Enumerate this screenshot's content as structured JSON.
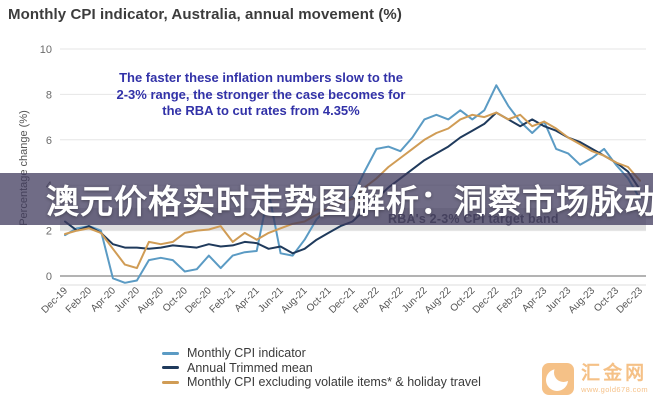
{
  "page": {
    "title": "Monthly CPI indicator, Australia, annual movement (%)"
  },
  "annotation": {
    "text": "The faster these inflation numbers slow to the 2-3% range, the stronger the case becomes for the RBA to cut rates from 4.35%",
    "color": "#3232a8"
  },
  "overlay_banner": {
    "headline": "澳元价格实时走势图解析：洞察市场脉动",
    "background": "rgba(62,56,92,0.74)"
  },
  "target_band": {
    "label": "RBA's 2-3% CPI target band",
    "from": 2,
    "to": 3,
    "fill": "#dcdcdc"
  },
  "watermark": {
    "brand": "汇金网",
    "url": "www.gold678.com",
    "color": "#ed8412"
  },
  "chart_data": {
    "type": "line",
    "title": "Monthly CPI indicator, Australia, annual movement (%)",
    "xlabel": "",
    "ylabel": "Percentage change (%)",
    "ylim": [
      -0.5,
      10
    ],
    "yticks": [
      0,
      2,
      4,
      6,
      8,
      10
    ],
    "grid": "horizontal",
    "legend_position": "bottom-left",
    "frequency": "monthly from Dec-19 to Dec-23 (49 points per series)",
    "x_ticks": [
      "Dec-19",
      "Feb-20",
      "Apr-20",
      "Jun-20",
      "Aug-20",
      "Oct-20",
      "Dec-20",
      "Feb-21",
      "Apr-21",
      "Jun-21",
      "Aug-21",
      "Oct-21",
      "Dec-21",
      "Feb-22",
      "Apr-22",
      "Jun-22",
      "Aug-22",
      "Oct-22",
      "Dec-22",
      "Feb-23",
      "Apr-23",
      "Jun-23",
      "Aug-23",
      "Oct-23",
      "Dec-23"
    ],
    "series": [
      {
        "name": "Monthly CPI indicator",
        "color": "#5b9bc4",
        "values": [
          1.8,
          2.1,
          2.2,
          2.0,
          -0.1,
          -0.3,
          -0.2,
          0.7,
          0.8,
          0.7,
          0.2,
          0.3,
          0.9,
          0.35,
          0.9,
          1.05,
          1.1,
          3.7,
          1.0,
          0.9,
          1.6,
          2.5,
          3.0,
          3.2,
          3.5,
          4.6,
          5.6,
          5.7,
          5.5,
          6.1,
          6.9,
          7.1,
          6.9,
          7.3,
          6.9,
          7.3,
          8.4,
          7.5,
          6.8,
          6.3,
          6.8,
          5.6,
          5.4,
          4.9,
          5.2,
          5.6,
          4.9,
          4.3,
          3.4
        ]
      },
      {
        "name": "Annual Trimmed mean",
        "color": "#1f3a5c",
        "values": [
          2.4,
          2.0,
          2.2,
          1.9,
          1.4,
          1.25,
          1.25,
          1.2,
          1.25,
          1.35,
          1.3,
          1.25,
          1.4,
          1.3,
          1.35,
          1.5,
          1.45,
          1.2,
          1.3,
          1.0,
          1.2,
          1.6,
          1.9,
          2.2,
          2.4,
          2.9,
          3.4,
          3.9,
          4.3,
          4.7,
          5.1,
          5.4,
          5.7,
          6.1,
          6.4,
          6.7,
          7.2,
          6.9,
          6.6,
          6.9,
          6.6,
          6.4,
          6.1,
          5.9,
          5.6,
          5.3,
          5.0,
          4.6,
          3.8
        ]
      },
      {
        "name": "Monthly CPI excluding volatile items* & holiday travel",
        "color": "#d09c55",
        "values": [
          1.85,
          2.0,
          2.1,
          1.9,
          1.2,
          0.5,
          0.35,
          1.5,
          1.4,
          1.5,
          1.9,
          2.0,
          2.05,
          2.2,
          1.5,
          1.9,
          1.6,
          1.9,
          2.1,
          2.3,
          2.4,
          2.7,
          3.0,
          3.2,
          3.4,
          3.9,
          4.3,
          4.8,
          5.2,
          5.6,
          6.0,
          6.3,
          6.5,
          6.9,
          7.1,
          7.0,
          7.2,
          6.9,
          7.1,
          6.6,
          6.8,
          6.5,
          6.1,
          5.8,
          5.5,
          5.3,
          5.0,
          4.8,
          4.2
        ]
      }
    ]
  }
}
